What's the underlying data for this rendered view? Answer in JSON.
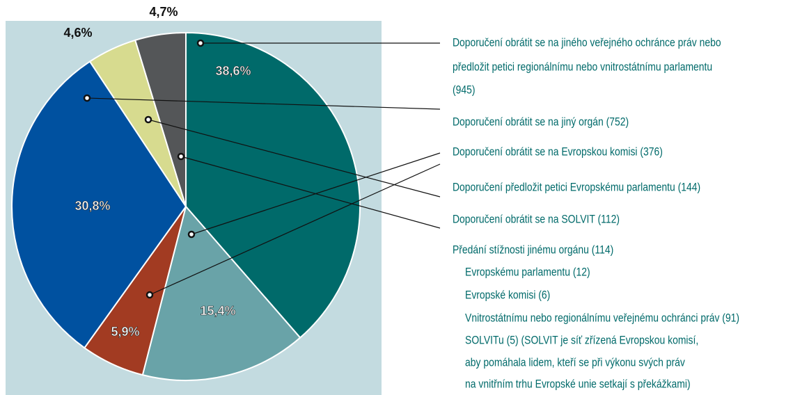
{
  "chart_data": {
    "type": "pie",
    "values": [
      38.6,
      15.4,
      5.9,
      30.8,
      4.6,
      4.7
    ],
    "value_labels": [
      "38,6%",
      "15,4%",
      "5,9%",
      "30,8%",
      "4,6%",
      "4,7%"
    ],
    "colors": [
      "#006a6a",
      "#69a3a8",
      "#a23b22",
      "#0051a0",
      "#d7db8f",
      "#545658"
    ],
    "annotations": [
      "Doporučení obrátit se na jiného veřejného ochránce práv nebo",
      "předložit petici regionálnímu nebo vnitrostátnímu parlamentu",
      "(945)",
      "Doporučení obrátit se na jiný orgán (752)",
      "Doporučení obrátit se na Evropskou komisi (376)",
      "Doporučení předložit petici Evropskému parlamentu (144)",
      "Doporučení obrátit se na SOLVIT (112)",
      "Předání stížnosti jinému orgánu (114)",
      "Evropskému parlamentu (12)",
      "Evropské komisi (6)",
      "Vnitrostátnímu nebo regionálnímu veřejnému ochránci práv (91)",
      "SOLVITu (5) (SOLVIT je síť zřízená Evropskou komisí,",
      "aby pomáhala lidem, kteří se při výkonu svých práv",
      "na vnitřním trhu Evropské unie setkají s překážkami)"
    ]
  }
}
